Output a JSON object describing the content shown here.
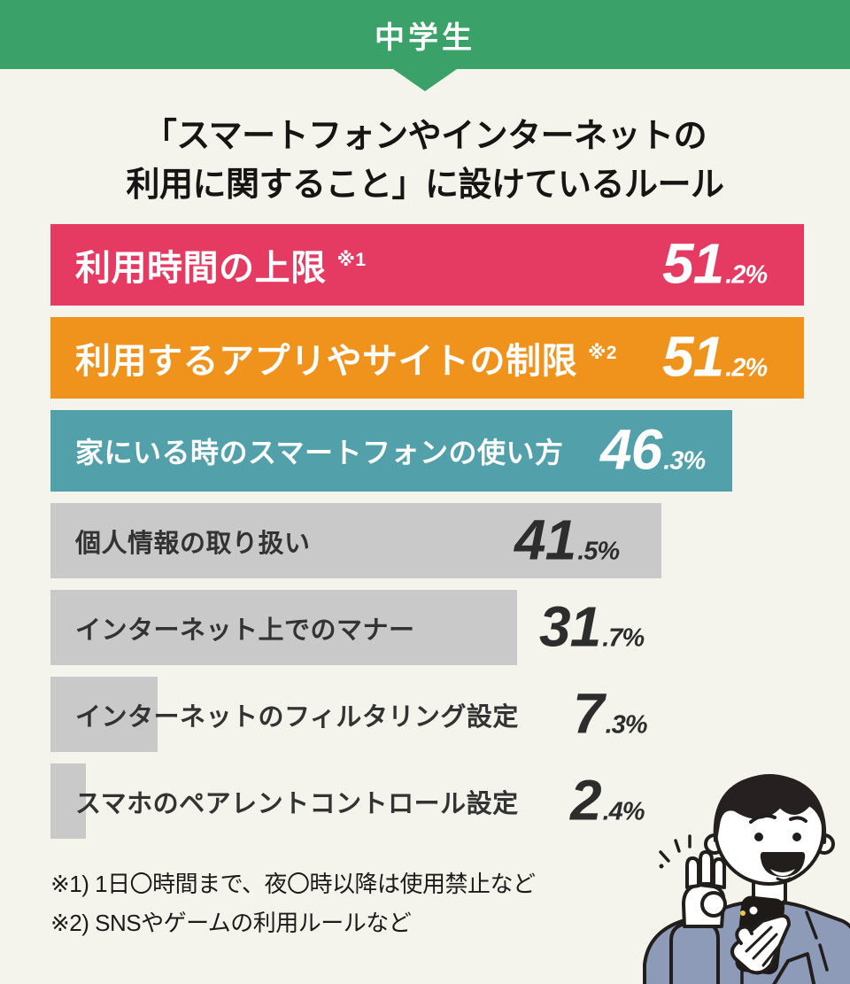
{
  "page": {
    "background": "#f4f3ec"
  },
  "header": {
    "label": "中学生",
    "bg_color": "#3aa169",
    "text_color": "#ffffff"
  },
  "title": {
    "line1": "「スマートフォンやインターネットの",
    "line2": "利用に関すること」に設けているルール"
  },
  "chart_data": {
    "type": "bar",
    "orientation": "horizontal",
    "title": "「スマートフォンやインターネットの利用に関すること」に設けているルール",
    "value_unit": "%",
    "x_max": 51.2,
    "grid": false,
    "legend": false,
    "categories": [
      "利用時間の上限",
      "利用するアプリやサイトの制限",
      "家にいる時のスマートフォンの使い方",
      "個人情報の取り扱い",
      "インターネット上でのマナー",
      "インターネットのフィルタリング設定",
      "スマホのペアレントコントロール設定"
    ],
    "values": [
      51.2,
      51.2,
      46.3,
      41.5,
      31.7,
      7.3,
      2.4
    ],
    "bars": [
      {
        "label": "利用時間の上限",
        "note": "※1",
        "value": 51.2,
        "color": "#e53b62",
        "label_color": "#ffffff",
        "value_color": "#ffffff",
        "value_x": 691
      },
      {
        "label": "利用するアプリやサイトの制限",
        "note": "※2",
        "value": 51.2,
        "color": "#ef931d",
        "label_color": "#ffffff",
        "value_color": "#ffffff",
        "value_x": 691
      },
      {
        "label": "家にいる時のスマートフォンの使い方",
        "note": "",
        "value": 46.3,
        "color": "#52a0a9",
        "label_color": "#ffffff",
        "value_color": "#ffffff",
        "value_x": 621
      },
      {
        "label": "個人情報の取り扱い",
        "note": "",
        "value": 41.5,
        "color": "#c9c9c9",
        "label_color": "#333333",
        "value_color": "#2d2d2d",
        "value_x": 524
      },
      {
        "label": "インターネット上でのマナー",
        "note": "",
        "value": 31.7,
        "color": "#c9c9c9",
        "label_color": "#333333",
        "value_color": "#2d2d2d",
        "value_x": 552
      },
      {
        "label": "インターネットのフィルタリング設定",
        "note": "",
        "value": 7.3,
        "color": "#c9c9c9",
        "label_color": "#333333",
        "value_color": "#2d2d2d",
        "value_x": 590
      },
      {
        "label": "スマホのペアレントコントロール設定",
        "note": "",
        "value": 2.4,
        "color": "#c9c9c9",
        "label_color": "#333333",
        "value_color": "#2d2d2d",
        "value_x": 587
      }
    ]
  },
  "footnotes": [
    "※1) 1日〇時間まで、夜〇時以降は使用禁止など",
    "※2) SNSやゲームの利用ルールなど"
  ],
  "illustration": {
    "name": "student-boy-ok-sign-with-phone",
    "uniform_color": "#8d9bb9",
    "outline_color": "#221e1c",
    "button_color": "#f2c93e",
    "phone_color": "#1d1a18"
  }
}
